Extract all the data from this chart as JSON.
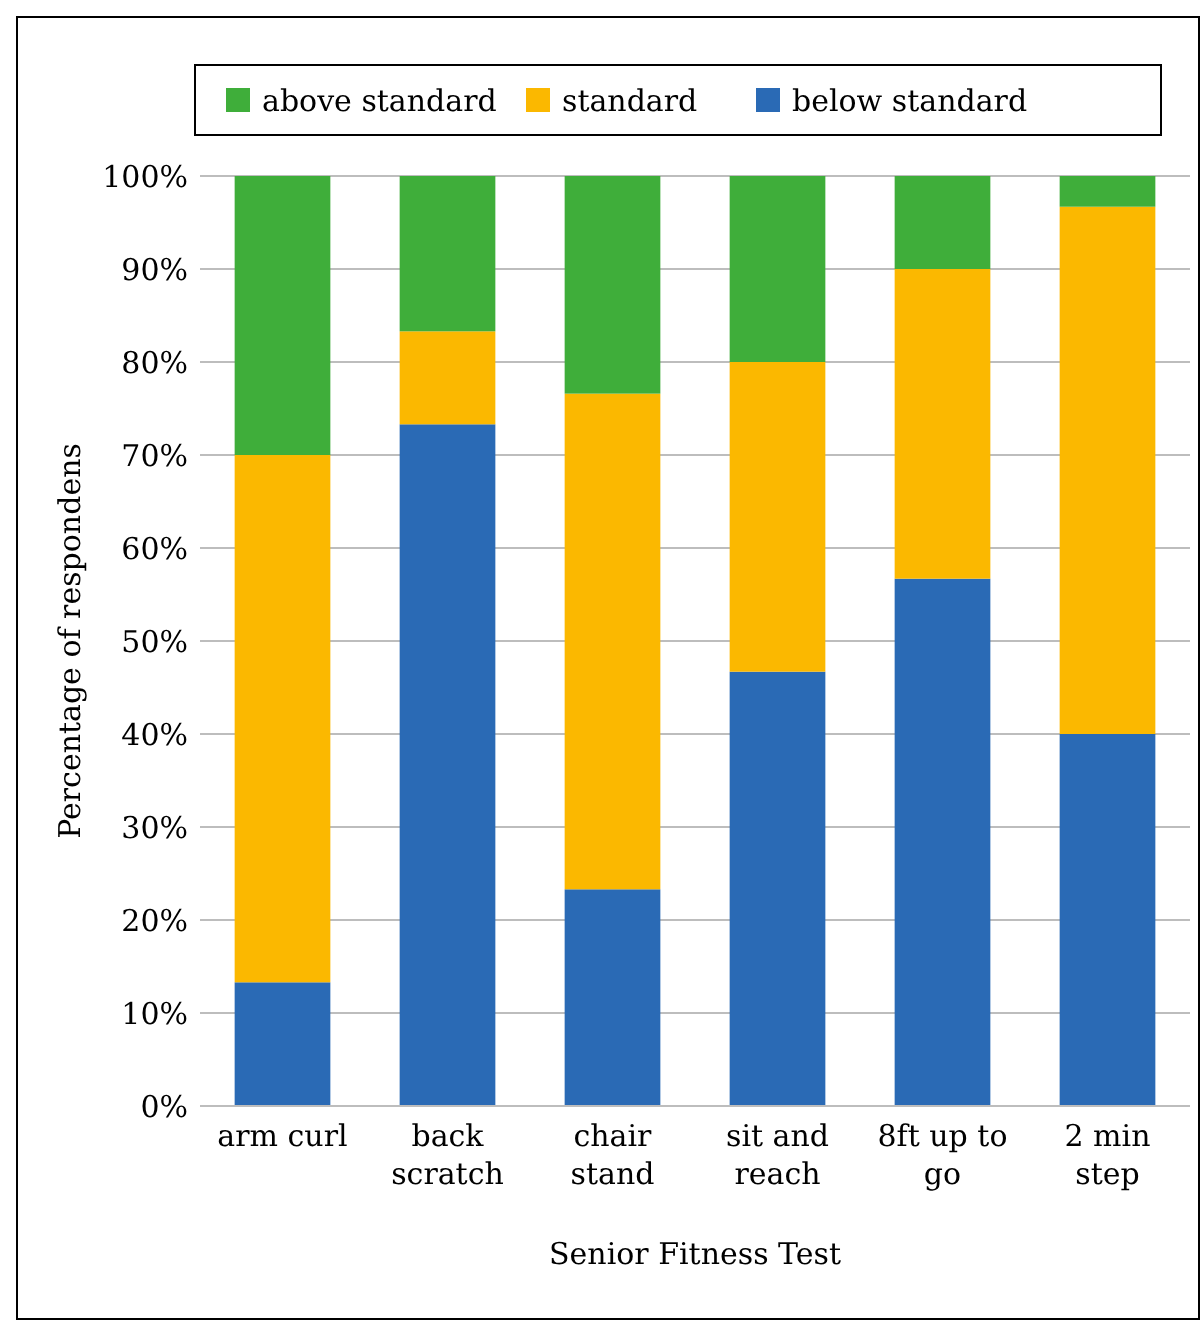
{
  "chart_data": {
    "type": "bar",
    "stacked": true,
    "xlabel": "Senior Fitness Test",
    "ylabel": "Percentage of respondens",
    "categories": [
      "arm curl",
      "back scratch",
      "chair stand",
      "sit and reach",
      "8ft up to go",
      "2 min step"
    ],
    "series": [
      {
        "name": "below standard",
        "color": "#2a6ab5",
        "values": [
          13.3,
          73.3,
          23.3,
          46.7,
          56.7,
          40
        ]
      },
      {
        "name": "standard",
        "color": "#fbb800",
        "values": [
          56.7,
          10,
          53.3,
          33.3,
          33.3,
          56.7
        ]
      },
      {
        "name": "above standard",
        "color": "#3fae3a",
        "values": [
          30,
          16.7,
          23.4,
          20,
          10,
          3.3
        ]
      }
    ],
    "ylim": [
      0,
      100
    ],
    "yticks": [
      {
        "value": 0,
        "label": "0%"
      },
      {
        "value": 10,
        "label": "10%"
      },
      {
        "value": 20,
        "label": "20%"
      },
      {
        "value": 30,
        "label": "30%"
      },
      {
        "value": 40,
        "label": "40%"
      },
      {
        "value": 50,
        "label": "50%"
      },
      {
        "value": 60,
        "label": "60%"
      },
      {
        "value": 70,
        "label": "70%"
      },
      {
        "value": 80,
        "label": "80%"
      },
      {
        "value": 90,
        "label": "90%"
      },
      {
        "value": 100,
        "label": "100%"
      }
    ],
    "grid": "y",
    "legend": "top"
  }
}
